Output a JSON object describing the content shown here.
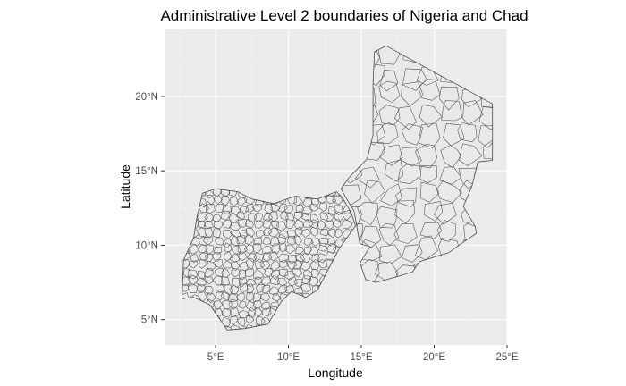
{
  "map": {
    "title": "Administrative Level 2 boundaries of Nigeria and Chad",
    "xlabel": "Longitude",
    "ylabel": "Latitude",
    "x_ticks": [
      {
        "value": 5,
        "label": "5°E"
      },
      {
        "value": 10,
        "label": "10°E"
      },
      {
        "value": 15,
        "label": "15°E"
      },
      {
        "value": 20,
        "label": "20°E"
      },
      {
        "value": 25,
        "label": "25°E"
      }
    ],
    "y_ticks": [
      {
        "value": 5,
        "label": "5°N"
      },
      {
        "value": 10,
        "label": "10°N"
      },
      {
        "value": 15,
        "label": "15°N"
      },
      {
        "value": 20,
        "label": "20°N"
      }
    ],
    "xlim": [
      1.5,
      25
    ],
    "ylim": [
      3.3,
      24.5
    ],
    "panel_background": "#ebebeb",
    "grid_color": "#ffffff",
    "region_fill": "#e9e9e9",
    "boundary_color": "#4d4d4d",
    "countries": [
      {
        "name": "Nigeria",
        "lonlat": [
          [
            2.7,
            6.4
          ],
          [
            2.8,
            9.0
          ],
          [
            3.5,
            10.5
          ],
          [
            3.7,
            11.8
          ],
          [
            4.1,
            13.5
          ],
          [
            5.0,
            13.8
          ],
          [
            6.5,
            13.6
          ],
          [
            7.5,
            13.1
          ],
          [
            9.0,
            12.8
          ],
          [
            10.5,
            13.3
          ],
          [
            12.0,
            13.1
          ],
          [
            13.3,
            13.6
          ],
          [
            13.7,
            13.2
          ],
          [
            14.3,
            12.2
          ],
          [
            14.6,
            11.3
          ],
          [
            13.5,
            9.8
          ],
          [
            12.8,
            8.5
          ],
          [
            12.0,
            7.0
          ],
          [
            11.2,
            6.5
          ],
          [
            10.2,
            6.9
          ],
          [
            9.5,
            6.2
          ],
          [
            8.6,
            4.7
          ],
          [
            7.0,
            4.4
          ],
          [
            5.8,
            4.3
          ],
          [
            4.6,
            6.0
          ],
          [
            3.5,
            6.5
          ]
        ]
      },
      {
        "name": "Chad",
        "lonlat": [
          [
            15.9,
            23.0
          ],
          [
            16.7,
            23.4
          ],
          [
            24.0,
            19.5
          ],
          [
            24.0,
            15.7
          ],
          [
            23.0,
            15.6
          ],
          [
            22.6,
            14.0
          ],
          [
            22.0,
            12.6
          ],
          [
            22.8,
            11.3
          ],
          [
            22.9,
            10.8
          ],
          [
            21.7,
            10.0
          ],
          [
            21.0,
            9.5
          ],
          [
            20.0,
            9.2
          ],
          [
            19.0,
            8.9
          ],
          [
            18.5,
            8.2
          ],
          [
            17.5,
            7.9
          ],
          [
            16.0,
            7.5
          ],
          [
            15.3,
            7.7
          ],
          [
            14.9,
            8.8
          ],
          [
            15.6,
            9.9
          ],
          [
            14.9,
            10.1
          ],
          [
            14.7,
            11.2
          ],
          [
            14.5,
            12.3
          ],
          [
            14.0,
            13.1
          ],
          [
            13.6,
            13.8
          ],
          [
            14.2,
            14.6
          ],
          [
            15.4,
            15.8
          ],
          [
            15.8,
            17.4
          ],
          [
            15.8,
            20.8
          ]
        ]
      }
    ]
  }
}
